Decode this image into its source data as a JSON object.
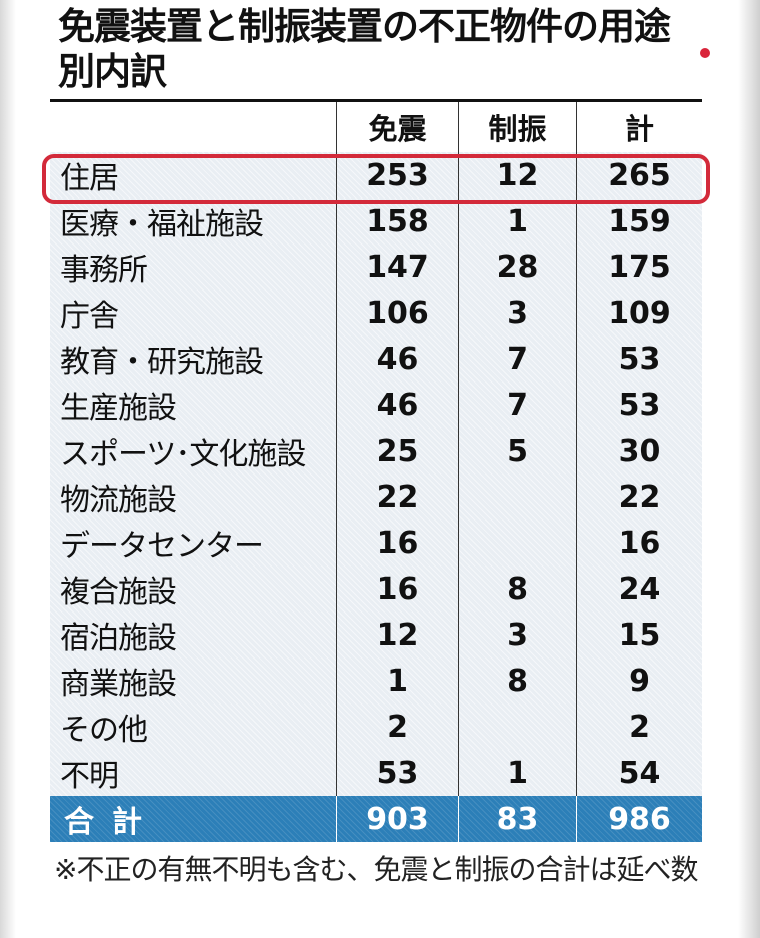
{
  "title": "免震装置と制振装置の不正物件の用途別内訳",
  "note": "※不正の有無不明も含む、免震と制振の合計は延べ数",
  "colors": {
    "highlight": "#d32a3a",
    "total_row": "#2c7fb8",
    "row_bg": "#e9eef3"
  },
  "chart_data": {
    "type": "table",
    "title": "免震装置と制振装置の不正物件の用途別内訳",
    "columns": [
      "",
      "免震",
      "制振",
      "計"
    ],
    "rows": [
      {
        "label": "住居",
        "values": [
          "253",
          "12",
          "265"
        ]
      },
      {
        "label": "医療・福祉施設",
        "values": [
          "158",
          "1",
          "159"
        ]
      },
      {
        "label": "事務所",
        "values": [
          "147",
          "28",
          "175"
        ]
      },
      {
        "label": "庁舎",
        "values": [
          "106",
          "3",
          "109"
        ]
      },
      {
        "label": "教育・研究施設",
        "values": [
          "46",
          "7",
          "53"
        ]
      },
      {
        "label": "生産施設",
        "values": [
          "46",
          "7",
          "53"
        ]
      },
      {
        "label": "スポーツ･文化施設",
        "values": [
          "25",
          "5",
          "30"
        ]
      },
      {
        "label": "物流施設",
        "values": [
          "22",
          "",
          "22"
        ]
      },
      {
        "label": "データセンター",
        "values": [
          "16",
          "",
          "16"
        ]
      },
      {
        "label": "複合施設",
        "values": [
          "16",
          "8",
          "24"
        ]
      },
      {
        "label": "宿泊施設",
        "values": [
          "12",
          "3",
          "15"
        ]
      },
      {
        "label": "商業施設",
        "values": [
          "1",
          "8",
          "9"
        ]
      },
      {
        "label": "その他",
        "values": [
          "2",
          "",
          "2"
        ]
      },
      {
        "label": "不明",
        "values": [
          "53",
          "1",
          "54"
        ]
      }
    ],
    "total": {
      "label": "合計",
      "values": [
        "903",
        "83",
        "986"
      ]
    },
    "highlighted_row": "住居"
  }
}
